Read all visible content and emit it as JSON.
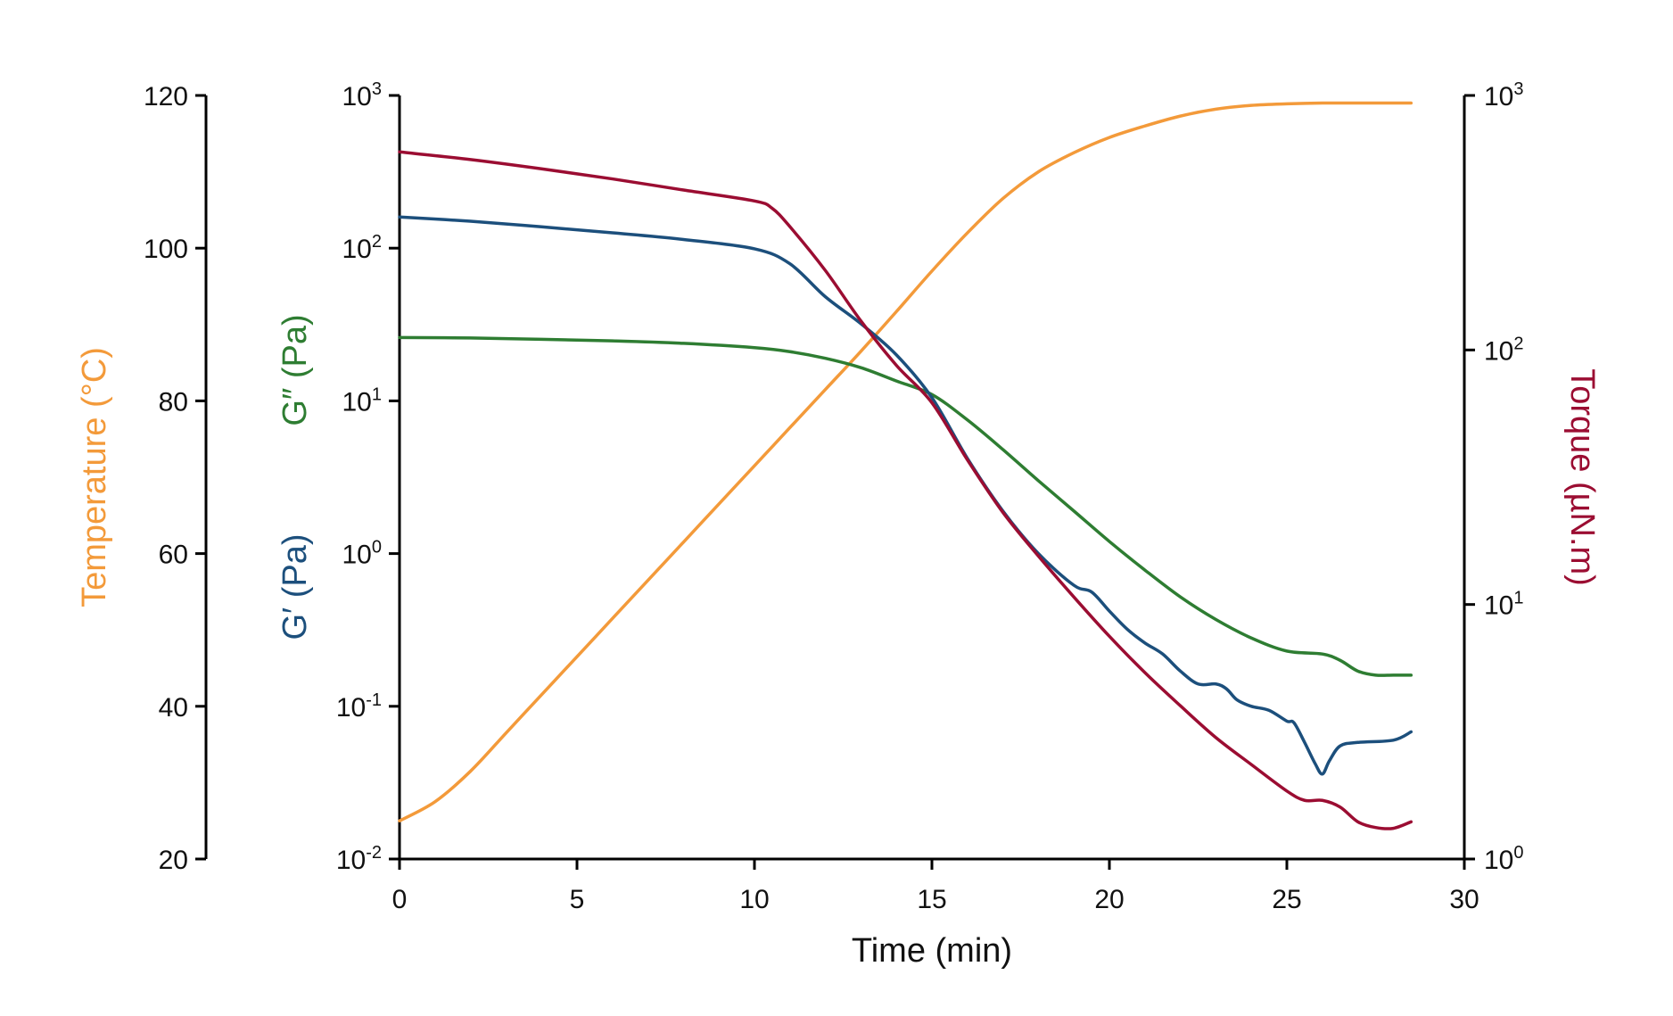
{
  "chart_data": {
    "type": "line",
    "x_axis": {
      "label": "Time (min)",
      "range": [
        0,
        30
      ],
      "ticks": [
        "0",
        "5",
        "10",
        "15",
        "20",
        "25",
        "30"
      ]
    },
    "temperature_axis": {
      "label": "Temperature (°C)",
      "color": "#f39a3a",
      "scale": "linear",
      "range": [
        20,
        120
      ],
      "ticks": [
        "20",
        "40",
        "60",
        "80",
        "100",
        "120"
      ]
    },
    "modulus_axis": {
      "label_gpp": "G″ (Pa)",
      "label_gp": "G′ (Pa)",
      "color_gpp": "#2e7d32",
      "color_gp": "#1c4f7c",
      "scale": "log",
      "range": [
        0.01,
        1000
      ],
      "ticks": [
        {
          "base": "10",
          "exp": "3"
        },
        {
          "base": "10",
          "exp": "2"
        },
        {
          "base": "10",
          "exp": "1"
        },
        {
          "base": "10",
          "exp": "0"
        },
        {
          "base": "10",
          "exp": "-1"
        },
        {
          "base": "10",
          "exp": "-2"
        }
      ]
    },
    "torque_axis": {
      "label": "Torque (µN.m)",
      "color": "#9b0d32",
      "scale": "log",
      "range": [
        1,
        1000
      ],
      "ticks": [
        {
          "base": "10",
          "exp": "3"
        },
        {
          "base": "10",
          "exp": "2"
        },
        {
          "base": "10",
          "exp": "1"
        },
        {
          "base": "10",
          "exp": "0"
        }
      ]
    },
    "series": [
      {
        "name": "Temperature (°C)",
        "axis": "temperature",
        "color": "#f39a3a",
        "x": [
          0,
          1,
          2,
          3,
          4,
          5,
          6,
          7,
          8,
          9,
          10,
          11,
          12,
          13,
          14,
          15,
          16,
          17,
          18,
          19,
          20,
          21,
          22,
          23,
          24,
          25,
          26,
          27,
          28,
          28.5
        ],
        "y": [
          25,
          27.5,
          31.5,
          36.5,
          41.5,
          46.5,
          51.5,
          56.5,
          61.5,
          66.5,
          71.5,
          76.5,
          81.5,
          86.5,
          91.7,
          97,
          102,
          106.5,
          110,
          112.5,
          114.5,
          116,
          117.3,
          118.2,
          118.7,
          118.9,
          119,
          119,
          119,
          119
        ]
      },
      {
        "name": "G″ (Pa)",
        "axis": "modulus",
        "color": "#2e7d32",
        "x": [
          0,
          2,
          4,
          6,
          8,
          10,
          11,
          12,
          13,
          14,
          15,
          16,
          17,
          18,
          19,
          20,
          21,
          22,
          23,
          24,
          25,
          26,
          26.5,
          27,
          27.5,
          28,
          28.5
        ],
        "y": [
          26,
          25.8,
          25.3,
          24.7,
          23.8,
          22.3,
          21,
          19,
          16.5,
          13.5,
          11,
          7.5,
          4.8,
          3,
          1.9,
          1.2,
          0.78,
          0.52,
          0.37,
          0.28,
          0.23,
          0.22,
          0.2,
          0.17,
          0.16,
          0.16,
          0.16
        ]
      },
      {
        "name": "G′ (Pa)",
        "axis": "modulus",
        "color": "#1c4f7c",
        "x": [
          0,
          2,
          4,
          6,
          8,
          10,
          11,
          12,
          13,
          14,
          15,
          16,
          17,
          18,
          19,
          19.5,
          20,
          20.5,
          21,
          21.5,
          22,
          22.5,
          23,
          23.3,
          23.6,
          24,
          24.5,
          25,
          25.2,
          25.5,
          25.8,
          26,
          26.2,
          26.5,
          27,
          28,
          28.5
        ],
        "y": [
          160,
          150,
          138,
          126,
          114,
          99,
          79,
          48,
          32,
          20,
          10.5,
          4.2,
          1.9,
          1.0,
          0.62,
          0.56,
          0.42,
          0.32,
          0.26,
          0.22,
          0.17,
          0.14,
          0.14,
          0.13,
          0.11,
          0.1,
          0.094,
          0.08,
          0.078,
          0.058,
          0.042,
          0.036,
          0.044,
          0.055,
          0.058,
          0.06,
          0.068
        ]
      },
      {
        "name": "Torque (µN.m)",
        "axis": "torque",
        "color": "#9b0d32",
        "x": [
          0,
          2,
          4,
          6,
          8,
          10,
          10.5,
          11,
          12,
          13,
          14,
          15,
          16,
          17,
          18,
          19,
          20,
          21,
          22,
          23,
          24,
          25,
          25.5,
          26,
          26.5,
          27,
          27.5,
          28,
          28.5
        ],
        "y": [
          600,
          560,
          515,
          470,
          425,
          385,
          360,
          305,
          205,
          130,
          87,
          62,
          37,
          23,
          15.5,
          10.7,
          7.5,
          5.4,
          4.0,
          3.0,
          2.35,
          1.85,
          1.7,
          1.7,
          1.6,
          1.4,
          1.33,
          1.32,
          1.4
        ]
      }
    ]
  }
}
